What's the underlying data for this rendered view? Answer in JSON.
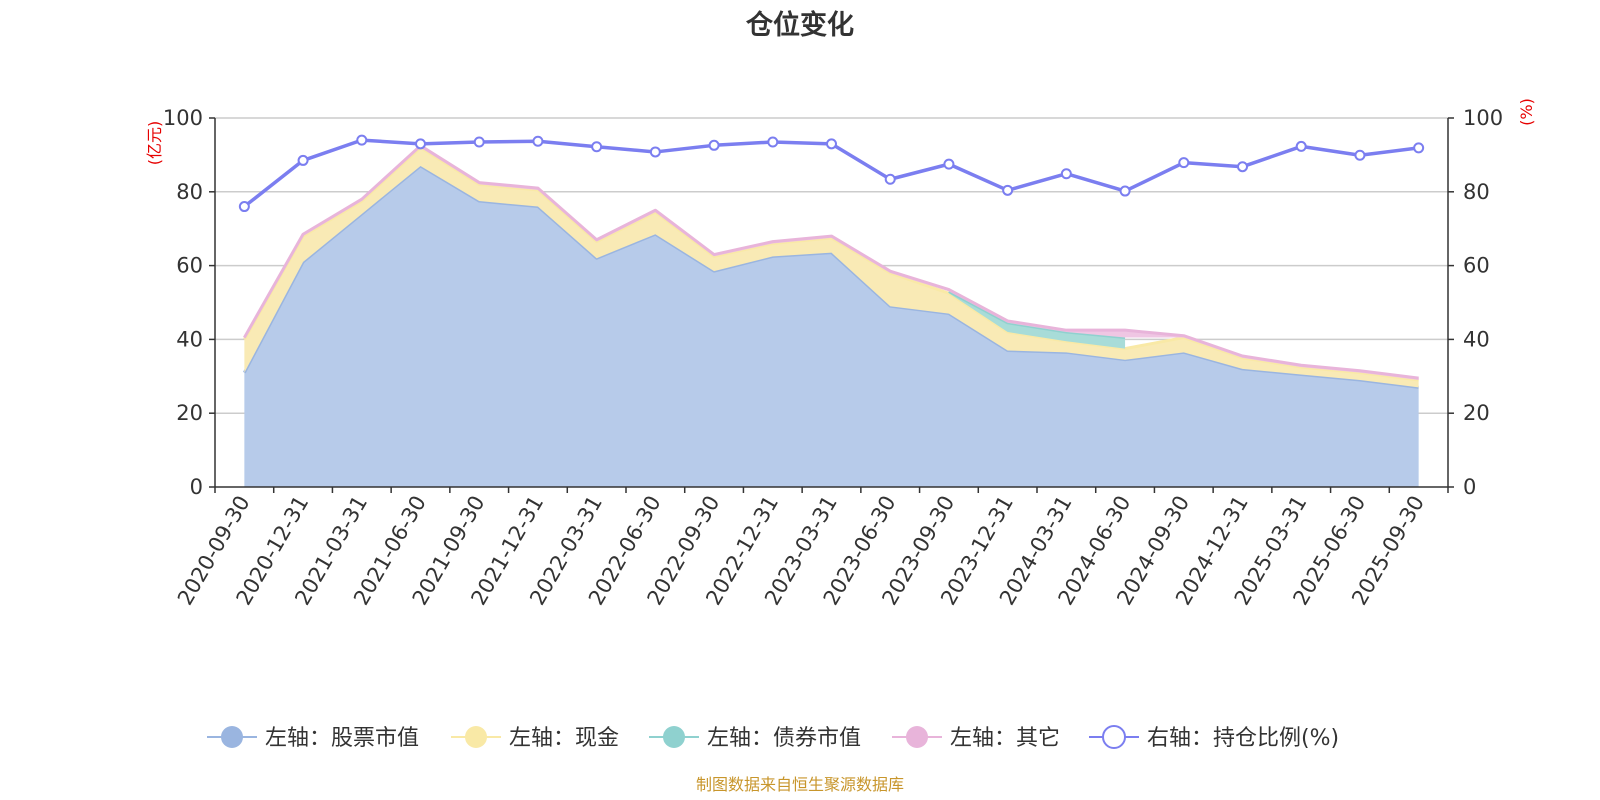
{
  "chart_data": {
    "type": "area",
    "title": "仓位变化",
    "source": "制图数据来自恒生聚源数据库",
    "left_axis": {
      "unit": "(亿元)",
      "range": [
        0,
        100
      ],
      "ticks": [
        0,
        20,
        40,
        60,
        80,
        100
      ]
    },
    "right_axis": {
      "unit": "(%)",
      "range": [
        0,
        100
      ],
      "ticks": [
        0,
        20,
        40,
        60,
        80,
        100
      ]
    },
    "categories": [
      "2020-09-30",
      "2020-12-31",
      "2021-03-31",
      "2021-06-30",
      "2021-09-30",
      "2021-12-31",
      "2022-03-31",
      "2022-06-30",
      "2022-09-30",
      "2022-12-31",
      "2023-03-31",
      "2023-06-30",
      "2023-09-30",
      "2023-12-31",
      "2024-03-31",
      "2024-06-30",
      "2024-09-30",
      "2024-12-31",
      "2025-03-31",
      "2025-06-30",
      "2025-09-30"
    ],
    "series": [
      {
        "name": "左轴：股票市值",
        "type": "area",
        "axis": "left",
        "color": "#9ab5e0",
        "fill": "#b7cbea",
        "values": [
          31,
          61,
          74,
          87,
          77.5,
          76,
          62,
          68.5,
          58.5,
          62.5,
          63.5,
          49,
          47,
          37,
          36.5,
          34.5,
          36.5,
          32,
          30.5,
          29,
          27
        ]
      },
      {
        "name": "左轴：现金",
        "type": "area",
        "axis": "left",
        "color": "#f9e9a6",
        "fill": "#f9eab5",
        "values": [
          9,
          7,
          3.5,
          5,
          4.5,
          4.5,
          4.5,
          6,
          4,
          3.5,
          4,
          9,
          5.5,
          5,
          3,
          3,
          4,
          3,
          2,
          2,
          2
        ]
      },
      {
        "name": "左轴：债券市值",
        "type": "area",
        "axis": "left",
        "color": "#8fd1cf",
        "fill": "#a8dcd8",
        "values": [
          null,
          null,
          null,
          null,
          null,
          null,
          null,
          null,
          null,
          null,
          null,
          null,
          0.5,
          2.5,
          2.5,
          3,
          null,
          null,
          null,
          null,
          null
        ]
      },
      {
        "name": "左轴：其它",
        "type": "area",
        "axis": "left",
        "color": "#e8b4da",
        "fill": "#efc6e3",
        "values": [
          0.5,
          0.5,
          0.5,
          0.5,
          0.5,
          0.5,
          0.5,
          0.5,
          0.5,
          0.5,
          0.5,
          0.5,
          0.5,
          0.5,
          0.5,
          2,
          0.5,
          0.5,
          0.5,
          0.5,
          0.5
        ]
      },
      {
        "name": "右轴：持仓比例(%)",
        "type": "line",
        "axis": "right",
        "color": "#7b7ef0",
        "values": [
          76,
          88.5,
          94,
          93,
          93.5,
          93.7,
          92.2,
          90.8,
          92.6,
          93.5,
          93,
          83.4,
          87.5,
          80.4,
          84.9,
          80.2,
          87.9,
          86.8,
          92.3,
          89.9,
          91.9
        ]
      }
    ]
  }
}
